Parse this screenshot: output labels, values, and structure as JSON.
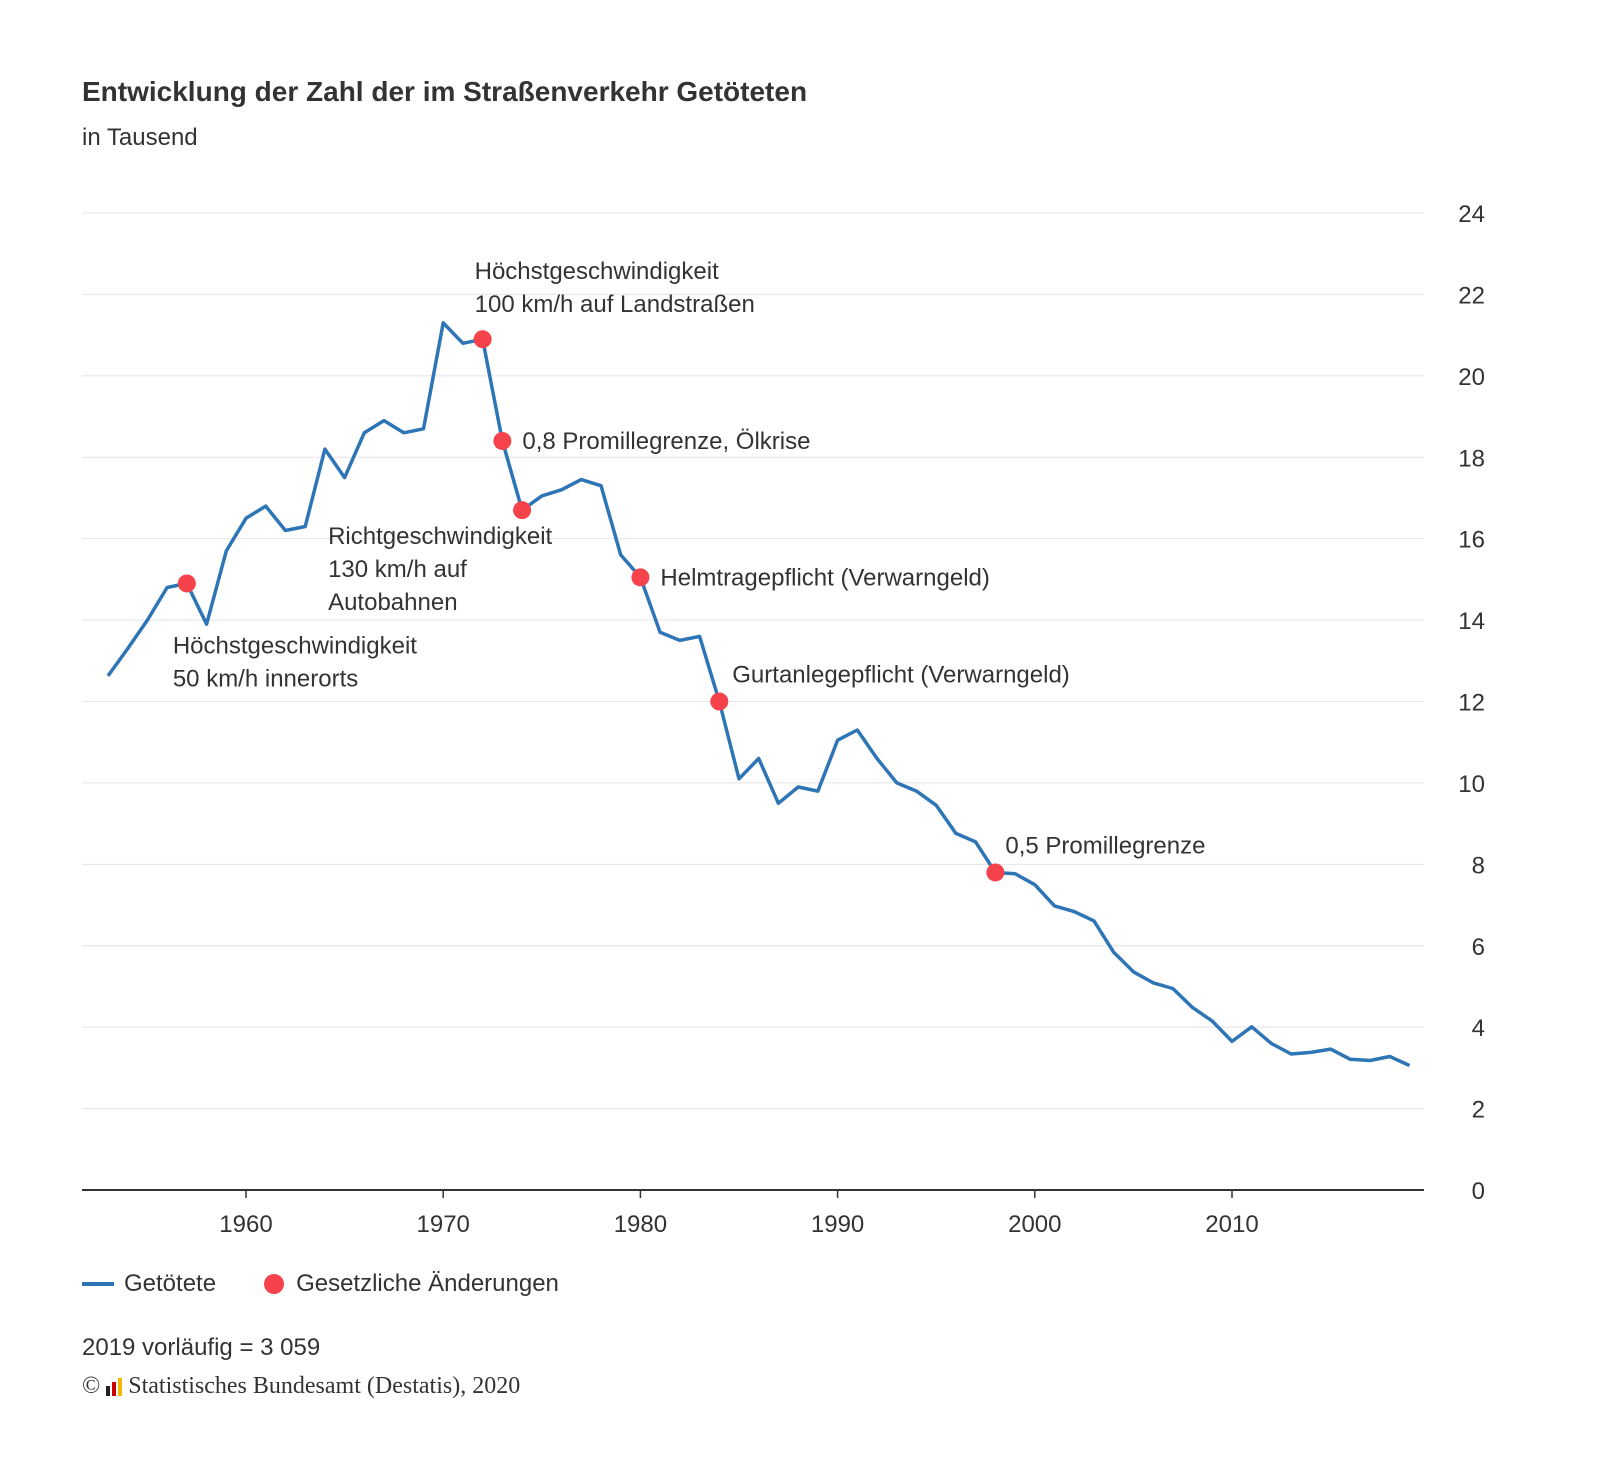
{
  "chart_data": {
    "type": "line",
    "title": "Entwicklung der Zahl der im Straßenverkehr Getöteten",
    "subtitle": "in Tausend",
    "ylim": [
      0,
      24
    ],
    "yticks": [
      0,
      2,
      4,
      6,
      8,
      10,
      12,
      14,
      16,
      18,
      20,
      22,
      24
    ],
    "xticks": [
      1960,
      1970,
      1980,
      1990,
      2000,
      2010
    ],
    "xlim": [
      1951.3,
      2019.6
    ],
    "grid": true,
    "y_axis_position": "right",
    "legend_placement": "bottom-left",
    "series": [
      {
        "name": "Getötete",
        "color": "#2e75b6",
        "x": [
          1953,
          1954,
          1955,
          1956,
          1957,
          1958,
          1959,
          1960,
          1961,
          1962,
          1963,
          1964,
          1965,
          1966,
          1967,
          1968,
          1969,
          1970,
          1971,
          1972,
          1973,
          1974,
          1975,
          1976,
          1977,
          1978,
          1979,
          1980,
          1981,
          1982,
          1983,
          1984,
          1985,
          1986,
          1987,
          1988,
          1989,
          1990,
          1991,
          1992,
          1993,
          1994,
          1995,
          1996,
          1997,
          1998,
          1999,
          2000,
          2001,
          2002,
          2003,
          2004,
          2005,
          2006,
          2007,
          2008,
          2009,
          2010,
          2011,
          2012,
          2013,
          2014,
          2015,
          2016,
          2017,
          2018,
          2019
        ],
        "values": [
          12.63,
          13.3,
          14.0,
          14.8,
          14.9,
          13.9,
          15.7,
          16.5,
          16.8,
          16.2,
          16.3,
          18.2,
          17.5,
          18.6,
          18.9,
          18.6,
          18.7,
          21.3,
          20.8,
          20.9,
          18.4,
          16.7,
          17.05,
          17.2,
          17.45,
          17.3,
          15.6,
          15.05,
          13.7,
          13.5,
          13.6,
          12.0,
          10.1,
          10.6,
          9.5,
          9.9,
          9.8,
          11.05,
          11.3,
          10.6,
          10.0,
          9.8,
          9.45,
          8.76,
          8.55,
          7.8,
          7.77,
          7.5,
          6.98,
          6.84,
          6.61,
          5.84,
          5.36,
          5.09,
          4.95,
          4.48,
          4.15,
          3.65,
          4.01,
          3.6,
          3.34,
          3.38,
          3.46,
          3.21,
          3.18,
          3.28,
          3.059
        ]
      }
    ],
    "markers": {
      "name": "Gesetzliche Änderungen",
      "color": "#f5424b",
      "points": [
        {
          "x": 1957,
          "y": 14.9,
          "label": [
            "Höchstgeschwindigkeit",
            "50 km/h innerorts"
          ]
        },
        {
          "x": 1972,
          "y": 20.9,
          "label": [
            "Höchstgeschwindigkeit",
            "100 km/h auf Landstraßen"
          ]
        },
        {
          "x": 1973,
          "y": 18.4,
          "label": [
            "0,8 Promillegrenze, Ölkrise"
          ]
        },
        {
          "x": 1974,
          "y": 16.7,
          "label": [
            "Richtgeschwindigkeit",
            "130 km/h auf",
            "Autobahnen"
          ]
        },
        {
          "x": 1980,
          "y": 15.05,
          "label": [
            "Helmtragepflicht (Verwarngeld)"
          ]
        },
        {
          "x": 1984,
          "y": 12.0,
          "label": [
            "Gurtanlegepflicht (Verwarngeld)"
          ]
        },
        {
          "x": 1998,
          "y": 7.8,
          "label": [
            "0,5 Promillegrenze"
          ]
        }
      ]
    }
  },
  "legend": {
    "line_label": "Getötete",
    "dot_label": "Gesetzliche Änderungen"
  },
  "note": "2019 vorläufig = 3 059",
  "source": {
    "copyright": "©",
    "text": "Statistisches Bundesamt (Destatis), 2020"
  }
}
